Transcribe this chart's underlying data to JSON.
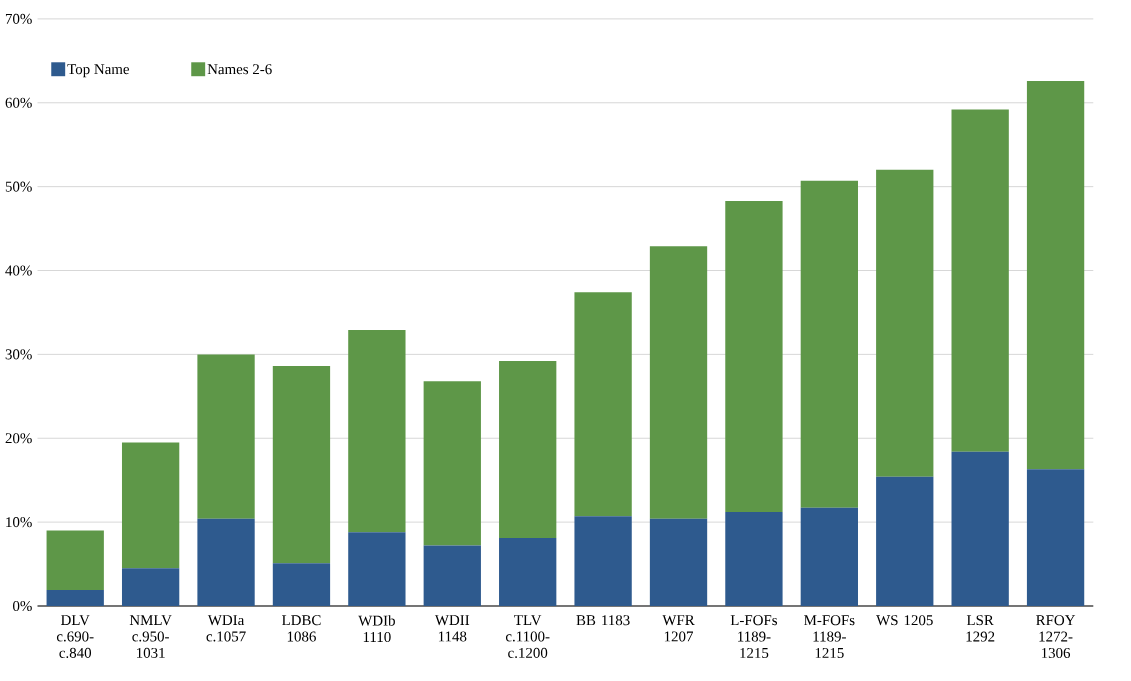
{
  "chart_data": {
    "type": "bar",
    "stacked": true,
    "categories": [
      "DLV c.690-c.840",
      "NMLV c.950-1031",
      "WDIa c.1057",
      "LDBC 1086",
      "WDIb 1110",
      "WDII 1148",
      "TLV c.1100-c.1200",
      "BB 1183",
      "WFR 1207",
      "L-FOFs 1189-1215",
      "M-FOFs 1189-1215",
      "WS 1205",
      "LSR 1292",
      "RFOY 1272-1306"
    ],
    "series": [
      {
        "name": "Top Name",
        "color": "#2e5a8e",
        "values": [
          1.9,
          4.5,
          10.4,
          5.1,
          8.8,
          7.2,
          8.1,
          10.7,
          10.4,
          11.2,
          11.7,
          15.4,
          18.4,
          16.3
        ]
      },
      {
        "name": "Names 2-6",
        "color": "#5e9748",
        "values": [
          7.1,
          15.0,
          19.6,
          23.5,
          24.1,
          19.6,
          21.1,
          26.7,
          32.5,
          37.1,
          39.0,
          36.6,
          40.8,
          46.3
        ]
      }
    ],
    "ylim": [
      0,
      70
    ],
    "yticks": [
      {
        "value": 0,
        "label": "0%"
      },
      {
        "value": 10,
        "label": "10%"
      },
      {
        "value": 20,
        "label": "20%"
      },
      {
        "value": 30,
        "label": "30%"
      },
      {
        "value": 40,
        "label": "40%"
      },
      {
        "value": 50,
        "label": "50%"
      },
      {
        "value": 60,
        "label": "60%"
      },
      {
        "value": 70,
        "label": "70%"
      }
    ],
    "grid": "y",
    "legend": "top left"
  }
}
